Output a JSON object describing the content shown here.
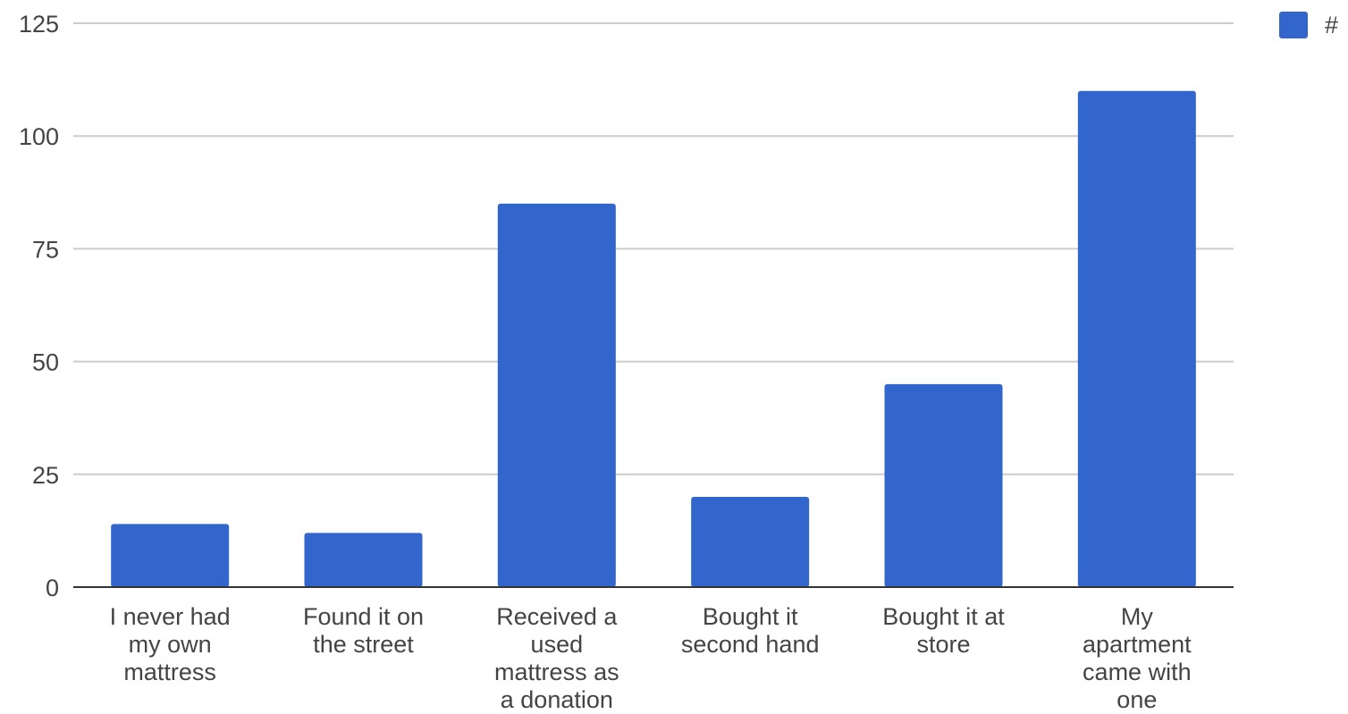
{
  "chart_data": {
    "type": "bar",
    "categories": [
      [
        "I never had",
        "my own",
        "mattress"
      ],
      [
        "Found it on",
        "the street"
      ],
      [
        "Received a",
        "used",
        "mattress as",
        "a donation"
      ],
      [
        "Bought it",
        "second hand"
      ],
      [
        "Bought it at",
        "store"
      ],
      [
        "My",
        "apartment",
        "came with",
        "one"
      ]
    ],
    "series": [
      {
        "name": "#",
        "values": [
          14,
          12,
          85,
          20,
          45,
          110
        ],
        "color": "#3366cc"
      }
    ],
    "ylim": [
      0,
      125
    ],
    "yticks": [
      "0",
      "25",
      "50",
      "75",
      "100",
      "125"
    ],
    "grid": true,
    "legend_position": "top-right"
  }
}
